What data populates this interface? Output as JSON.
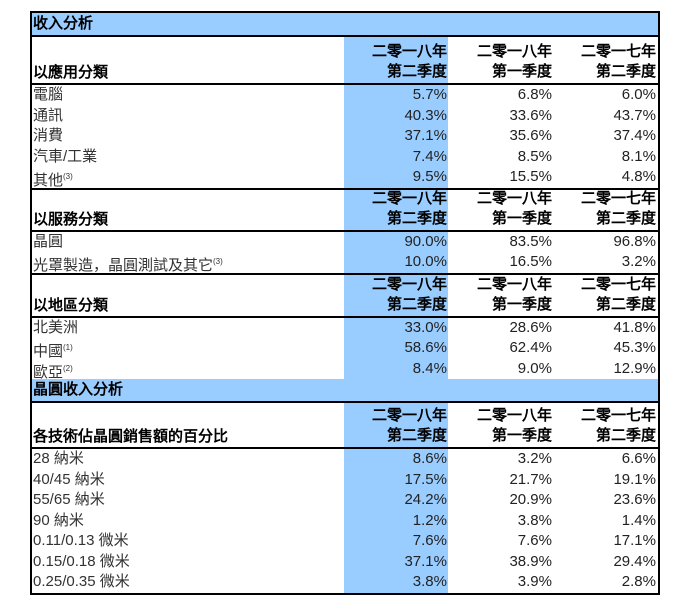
{
  "accent_color": "#99ccff",
  "columns": [
    [
      "二零一八年",
      "第二季度"
    ],
    [
      "二零一八年",
      "第一季度"
    ],
    [
      "二零一七年",
      "第二季度"
    ]
  ],
  "sections": [
    {
      "title": "收入分析",
      "groups": [
        {
          "label": "以應用分類",
          "rows": [
            {
              "label": "電腦",
              "note": "",
              "values": [
                "5.7%",
                "6.8%",
                "6.0%"
              ]
            },
            {
              "label": "通訊",
              "note": "",
              "values": [
                "40.3%",
                "33.6%",
                "43.7%"
              ]
            },
            {
              "label": "消費",
              "note": "",
              "values": [
                "37.1%",
                "35.6%",
                "37.4%"
              ]
            },
            {
              "label": "汽車/工業",
              "note": "",
              "values": [
                "7.4%",
                "8.5%",
                "8.1%"
              ]
            },
            {
              "label": "其他",
              "note": "(3)",
              "values": [
                "9.5%",
                "15.5%",
                "4.8%"
              ]
            }
          ]
        },
        {
          "label": "以服務分類",
          "rows": [
            {
              "label": "晶圓",
              "note": "",
              "values": [
                "90.0%",
                "83.5%",
                "96.8%"
              ]
            },
            {
              "label": "光罩製造，晶圓測試及其它",
              "note": "(3)",
              "values": [
                "10.0%",
                "16.5%",
                "3.2%"
              ]
            }
          ]
        },
        {
          "label": "以地區分類",
          "rows": [
            {
              "label": "北美洲",
              "note": "",
              "values": [
                "33.0%",
                "28.6%",
                "41.8%"
              ]
            },
            {
              "label": "中國",
              "note": "(1)",
              "values": [
                "58.6%",
                "62.4%",
                "45.3%"
              ]
            },
            {
              "label": "歐亞",
              "note": "(2)",
              "values": [
                "8.4%",
                "9.0%",
                "12.9%"
              ]
            }
          ]
        }
      ]
    },
    {
      "title": "晶圓收入分析",
      "groups": [
        {
          "label": "各技術佔晶圓銷售額的百分比",
          "rows": [
            {
              "label": "28 納米",
              "note": "",
              "values": [
                "8.6%",
                "3.2%",
                "6.6%"
              ]
            },
            {
              "label": "40/45 納米",
              "note": "",
              "values": [
                "17.5%",
                "21.7%",
                "19.1%"
              ]
            },
            {
              "label": "55/65 納米",
              "note": "",
              "values": [
                "24.2%",
                "20.9%",
                "23.6%"
              ]
            },
            {
              "label": "90 納米",
              "note": "",
              "values": [
                "1.2%",
                "3.8%",
                "1.4%"
              ]
            },
            {
              "label": "0.11/0.13 微米",
              "note": "",
              "values": [
                "7.6%",
                "7.6%",
                "17.1%"
              ]
            },
            {
              "label": "0.15/0.18 微米",
              "note": "",
              "values": [
                "37.1%",
                "38.9%",
                "29.4%"
              ]
            },
            {
              "label": "0.25/0.35 微米",
              "note": "",
              "values": [
                "3.8%",
                "3.9%",
                "2.8%"
              ]
            }
          ]
        }
      ]
    }
  ]
}
